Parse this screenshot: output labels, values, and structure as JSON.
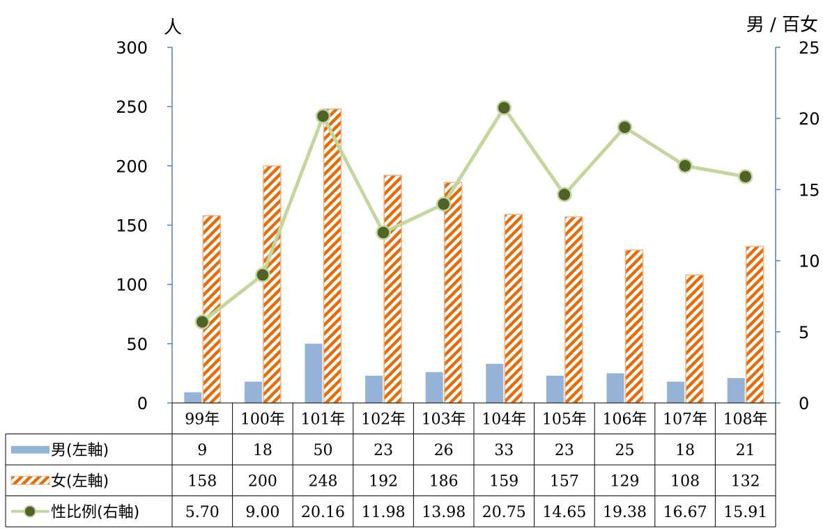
{
  "chart_data": {
    "type": "bar",
    "categories": [
      "99年",
      "100年",
      "101年",
      "102年",
      "103年",
      "104年",
      "105年",
      "106年",
      "107年",
      "108年"
    ],
    "series": [
      {
        "name": "男(左軸)",
        "type": "bar",
        "axis": "left",
        "color": "#95b3d7",
        "values": [
          9,
          18,
          50,
          23,
          26,
          33,
          23,
          25,
          18,
          21
        ]
      },
      {
        "name": "女(左軸)",
        "type": "bar",
        "axis": "left",
        "color": "#e46c0a",
        "pattern": "diagonal-stripes",
        "values": [
          158,
          200,
          248,
          192,
          186,
          159,
          157,
          129,
          108,
          132
        ]
      },
      {
        "name": "性比例(右軸)",
        "type": "line",
        "axis": "right",
        "color": "#c3d69b",
        "marker_color": "#4f6228",
        "values": [
          5.7,
          9.0,
          20.16,
          11.98,
          13.98,
          20.75,
          14.65,
          19.38,
          16.67,
          15.91
        ]
      }
    ],
    "table_rows": [
      {
        "label": "男(左軸)",
        "cells": [
          "9",
          "18",
          "50",
          "23",
          "26",
          "33",
          "23",
          "25",
          "18",
          "21"
        ]
      },
      {
        "label": "女(左軸)",
        "cells": [
          "158",
          "200",
          "248",
          "192",
          "186",
          "159",
          "157",
          "129",
          "108",
          "132"
        ]
      },
      {
        "label": "性比例(右軸)",
        "cells": [
          "5.70",
          "9.00",
          "20.16",
          "11.98",
          "13.98",
          "20.75",
          "14.65",
          "19.38",
          "16.67",
          "15.91"
        ]
      }
    ],
    "y_left": {
      "label": "人",
      "ylim": [
        0,
        300
      ],
      "ticks": [
        0,
        50,
        100,
        150,
        200,
        250,
        300
      ]
    },
    "y_right": {
      "label": "男 / 百女",
      "ylim": [
        0,
        25
      ],
      "ticks": [
        0,
        5,
        10,
        15,
        20,
        25
      ]
    },
    "legend_placement": "data-table-bottom",
    "axis_color": "#4f81bd"
  }
}
